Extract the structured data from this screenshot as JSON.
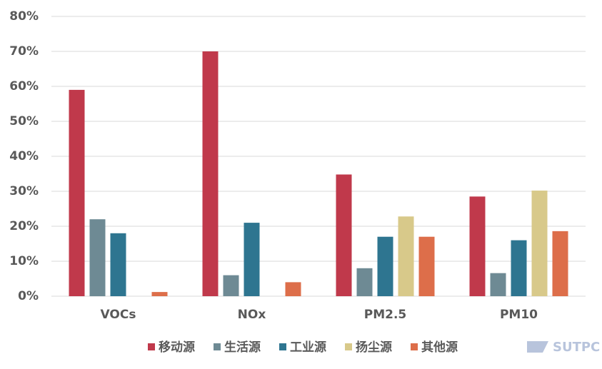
{
  "chart_data": {
    "type": "bar",
    "categories": [
      "VOCs",
      "NOx",
      "PM2.5",
      "PM10"
    ],
    "series": [
      {
        "name": "移动源",
        "color": "#c0394b",
        "values": [
          59,
          70,
          34.8,
          28.5
        ]
      },
      {
        "name": "生活源",
        "color": "#6e8a94",
        "values": [
          22,
          6,
          8,
          6.6
        ]
      },
      {
        "name": "工业源",
        "color": "#2e7590",
        "values": [
          18,
          21,
          17,
          16
        ]
      },
      {
        "name": "扬尘源",
        "color": "#d8c98a",
        "values": [
          null,
          null,
          22.8,
          30.2
        ]
      },
      {
        "name": "其他源",
        "color": "#dd6e4a",
        "values": [
          1.2,
          4,
          17,
          18.6
        ]
      }
    ],
    "ylim": [
      0,
      80
    ],
    "yticks": [
      {
        "value": 0,
        "label": "0%"
      },
      {
        "value": 10,
        "label": "10%"
      },
      {
        "value": 20,
        "label": "20%"
      },
      {
        "value": 30,
        "label": "30%"
      },
      {
        "value": 40,
        "label": "40%"
      },
      {
        "value": 50,
        "label": "50%"
      },
      {
        "value": 60,
        "label": "60%"
      },
      {
        "value": 70,
        "label": "70%"
      },
      {
        "value": 80,
        "label": "80%"
      }
    ],
    "grid": true,
    "legend": "bottom",
    "watermark": "SUTPC"
  }
}
